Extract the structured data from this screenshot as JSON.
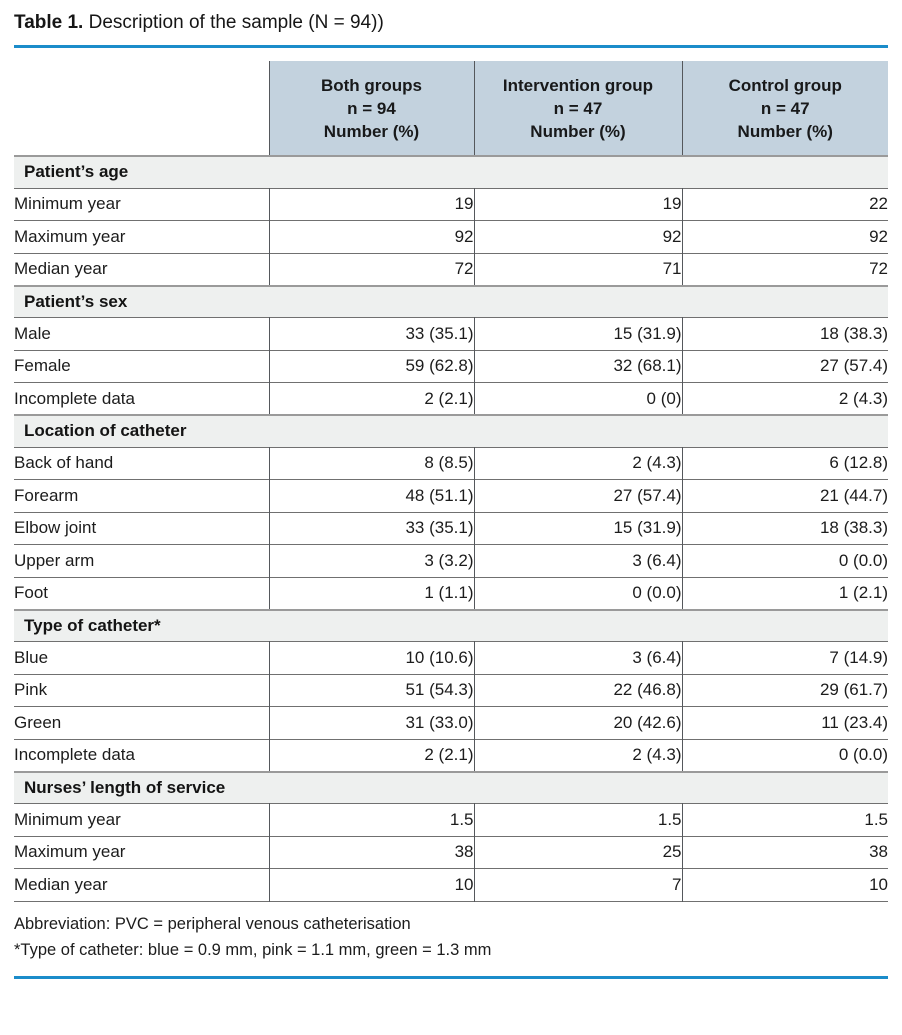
{
  "title": {
    "label": "Table 1.",
    "text": " Description of the sample (N = 94))"
  },
  "colors": {
    "accent_rule": "#1b8cca",
    "header_bg": "#c3d2de",
    "section_bg": "#eef0ef",
    "border_gray": "#707070"
  },
  "table": {
    "header": {
      "corner": "",
      "columns": [
        {
          "line1": "Both groups",
          "line2": "n = 94",
          "line3": "Number (%)"
        },
        {
          "line1": "Intervention group",
          "line2": "n = 47",
          "line3": "Number (%)"
        },
        {
          "line1": "Control group",
          "line2": "n = 47",
          "line3": "Number (%)"
        }
      ]
    },
    "sections": [
      {
        "label": "Patient’s age",
        "rows": [
          {
            "label": "Minimum year",
            "values": [
              "19",
              "19",
              "22"
            ]
          },
          {
            "label": "Maximum year",
            "values": [
              "92",
              "92",
              "92"
            ]
          },
          {
            "label": "Median year",
            "values": [
              "72",
              "71",
              "72"
            ]
          }
        ]
      },
      {
        "label": "Patient’s sex",
        "rows": [
          {
            "label": "Male",
            "values": [
              "33 (35.1)",
              "15 (31.9)",
              "18 (38.3)"
            ]
          },
          {
            "label": "Female",
            "values": [
              "59 (62.8)",
              "32 (68.1)",
              "27 (57.4)"
            ]
          },
          {
            "label": "Incomplete data",
            "values": [
              "2 (2.1)",
              "0 (0)",
              "2 (4.3)"
            ]
          }
        ]
      },
      {
        "label": "Location of catheter",
        "rows": [
          {
            "label": "Back of hand",
            "values": [
              "8 (8.5)",
              "2 (4.3)",
              "6 (12.8)"
            ]
          },
          {
            "label": "Forearm",
            "values": [
              "48 (51.1)",
              "27 (57.4)",
              "21 (44.7)"
            ]
          },
          {
            "label": "Elbow joint",
            "values": [
              "33 (35.1)",
              "15 (31.9)",
              "18 (38.3)"
            ]
          },
          {
            "label": "Upper arm",
            "values": [
              "3 (3.2)",
              "3 (6.4)",
              "0 (0.0)"
            ]
          },
          {
            "label": "Foot",
            "values": [
              "1 (1.1)",
              "0 (0.0)",
              "1 (2.1)"
            ]
          }
        ]
      },
      {
        "label": "Type of catheter*",
        "rows": [
          {
            "label": "Blue",
            "values": [
              "10 (10.6)",
              "3 (6.4)",
              "7 (14.9)"
            ]
          },
          {
            "label": "Pink",
            "values": [
              "51 (54.3)",
              "22 (46.8)",
              "29 (61.7)"
            ]
          },
          {
            "label": "Green",
            "values": [
              "31 (33.0)",
              "20 (42.6)",
              "11 (23.4)"
            ]
          },
          {
            "label": "Incomplete data",
            "values": [
              "2 (2.1)",
              "2 (4.3)",
              "0 (0.0)"
            ]
          }
        ]
      },
      {
        "label": "Nurses’ length of service",
        "rows": [
          {
            "label": "Minimum year",
            "values": [
              "1.5",
              "1.5",
              "1.5"
            ]
          },
          {
            "label": "Maximum year",
            "values": [
              "38",
              "25",
              "38"
            ]
          },
          {
            "label": "Median year",
            "values": [
              "10",
              "7",
              "10"
            ]
          }
        ]
      }
    ]
  },
  "footnotes": [
    "Abbreviation: PVC = peripheral venous catheterisation",
    "*Type of catheter: blue = 0.9 mm, pink = 1.1 mm, green = 1.3 mm"
  ]
}
